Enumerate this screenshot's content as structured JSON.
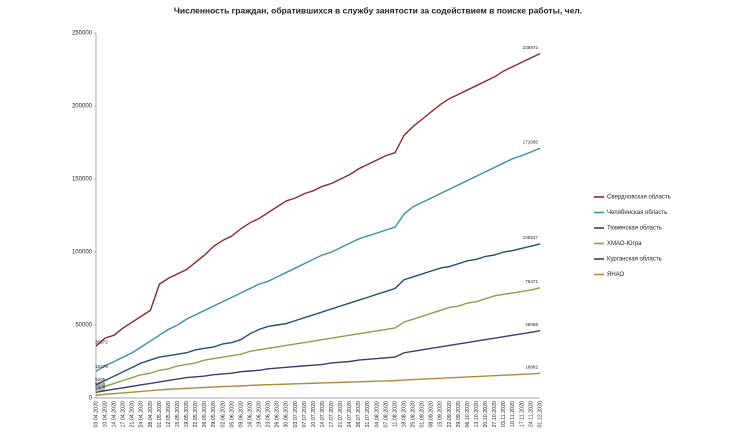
{
  "chart_data": {
    "type": "line",
    "title": "Численность граждан, обратившихся в службу занятости за содействием в поиске работы, чел.",
    "categories": [
      "03.04.2020",
      "10.04.2020",
      "14.04.2020",
      "17.04.2020",
      "21.04.2020",
      "24.04.2020",
      "28.04.2020",
      "01.05.2020",
      "12.05.2020",
      "15.05.2020",
      "19.05.2020",
      "22.05.2020",
      "26.05.2020",
      "29.05.2020",
      "02.06.2020",
      "05.06.2020",
      "09.06.2020",
      "16.06.2020",
      "19.06.2020",
      "23.06.2020",
      "26.06.2020",
      "30.06.2020",
      "03.07.2020",
      "07.07.2020",
      "10.07.2020",
      "14.07.2020",
      "17.07.2020",
      "21.07.2020",
      "24.07.2020",
      "28.07.2020",
      "31.07.2020",
      "04.08.2020",
      "07.08.2020",
      "11.08.2020",
      "18.08.2020",
      "25.08.2020",
      "01.09.2020",
      "08.09.2020",
      "15.09.2020",
      "22.09.2020",
      "29.09.2020",
      "06.10.2020",
      "13.10.2020",
      "20.10.2020",
      "27.10.2020",
      "03.11.2020",
      "10.11.2020",
      "17.11.2020",
      "24.11.2020",
      "01.12.2020"
    ],
    "series": [
      {
        "name": "Свердловская область",
        "color": "#8b2a2a",
        "values": [
          35572,
          41000,
          43000,
          48000,
          52000,
          56000,
          60000,
          78000,
          82000,
          85000,
          88000,
          93000,
          98000,
          104000,
          108000,
          111000,
          116000,
          120000,
          123000,
          127000,
          131000,
          135000,
          137000,
          140000,
          142000,
          145000,
          147000,
          150000,
          153000,
          157000,
          160000,
          163000,
          166000,
          168000,
          180000,
          186000,
          191000,
          196000,
          201000,
          205000,
          208000,
          211000,
          214000,
          217000,
          220000,
          224000,
          227000,
          230000,
          233000,
          235872
        ]
      },
      {
        "name": "Челябинская область",
        "color": "#3a8fa8",
        "values": [
          18278,
          22000,
          25000,
          28000,
          31000,
          35000,
          39000,
          43000,
          47000,
          50000,
          54000,
          57000,
          60000,
          63000,
          66000,
          69000,
          72000,
          75000,
          78000,
          80000,
          83000,
          86000,
          89000,
          92000,
          95000,
          98000,
          100000,
          103000,
          106000,
          109000,
          111000,
          113000,
          115000,
          117000,
          126000,
          131000,
          134000,
          137000,
          140000,
          143000,
          146000,
          149000,
          152000,
          155000,
          158000,
          161000,
          164000,
          166000,
          168500,
          171065
        ]
      },
      {
        "name": "Тюменская область",
        "color": "#1f4e79",
        "values": [
          9205,
          12000,
          15000,
          18000,
          21000,
          24000,
          26000,
          28000,
          29000,
          30000,
          31000,
          33000,
          34000,
          35000,
          37000,
          38000,
          40000,
          44000,
          47000,
          49000,
          50000,
          51000,
          53000,
          55000,
          57000,
          59000,
          61000,
          63000,
          65000,
          67000,
          69000,
          71000,
          73000,
          75000,
          81000,
          83000,
          85000,
          87000,
          89000,
          90000,
          92000,
          94000,
          95000,
          97000,
          98000,
          100000,
          101000,
          102500,
          104000,
          105537
        ]
      },
      {
        "name": "ХМАО-Югра",
        "color": "#8aa04a",
        "values": [
          5998,
          8000,
          10000,
          12000,
          14000,
          16000,
          17000,
          19000,
          20000,
          22000,
          23000,
          24000,
          26000,
          27000,
          28000,
          29000,
          30000,
          32000,
          33000,
          34000,
          35000,
          36000,
          37000,
          38000,
          39000,
          40000,
          41000,
          42000,
          43000,
          44000,
          45000,
          46000,
          47000,
          48000,
          52000,
          54000,
          56000,
          58000,
          60000,
          62000,
          63000,
          65000,
          66000,
          68000,
          70000,
          71000,
          72000,
          73000,
          74000,
          75471
        ]
      },
      {
        "name": "Курганская область",
        "color": "#3a3a7a",
        "values": [
          3906,
          5000,
          6000,
          7000,
          8000,
          9000,
          10000,
          11000,
          12000,
          13000,
          14000,
          14500,
          15000,
          16000,
          16500,
          17000,
          18000,
          18500,
          19000,
          20000,
          20500,
          21000,
          21500,
          22000,
          22500,
          23000,
          24000,
          24500,
          25000,
          26000,
          26500,
          27000,
          27500,
          28000,
          31000,
          32000,
          33000,
          34000,
          35000,
          36000,
          37000,
          38000,
          39000,
          40000,
          41000,
          42000,
          43000,
          44000,
          45000,
          46085
        ]
      },
      {
        "name": "ЯНАО",
        "color": "#b08a3a",
        "values": [
          1892,
          2500,
          3000,
          3500,
          4000,
          4500,
          5000,
          5500,
          6000,
          6300,
          6600,
          6900,
          7200,
          7500,
          7800,
          8000,
          8300,
          8600,
          8900,
          9100,
          9300,
          9500,
          9700,
          9900,
          10100,
          10300,
          10500,
          10700,
          10900,
          11100,
          11300,
          11500,
          11700,
          11900,
          12300,
          12600,
          12900,
          13200,
          13500,
          13800,
          14100,
          14400,
          14700,
          15000,
          15300,
          15600,
          15900,
          16200,
          16500,
          16882
        ]
      }
    ],
    "ylim": [
      0,
      250000
    ],
    "yticks": [
      0,
      50000,
      100000,
      150000,
      200000,
      250000
    ],
    "grid": false,
    "legend": "right"
  }
}
